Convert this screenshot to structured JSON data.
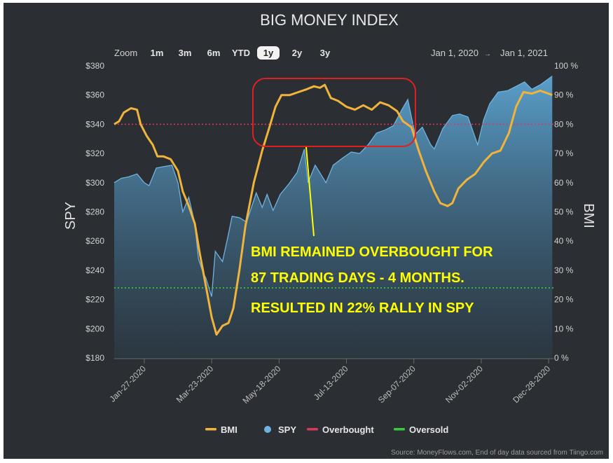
{
  "chart_data": {
    "type": "line",
    "title": "BIG MONEY INDEX",
    "zoom": {
      "label": "Zoom",
      "buttons": [
        "1m",
        "3m",
        "6m",
        "YTD",
        "1y",
        "2y",
        "3y"
      ],
      "selected": "1y"
    },
    "range": {
      "from": "Jan 1, 2020",
      "arrow": "→",
      "to": "Jan 1, 2021"
    },
    "ylabel_left": "SPY",
    "ylabel_right": "BMI",
    "y_left": {
      "min": 180,
      "max": 380,
      "ticks": [
        "$380",
        "$360",
        "$340",
        "$320",
        "$300",
        "$280",
        "$260",
        "$240",
        "$220",
        "$200",
        "$180"
      ]
    },
    "y_right": {
      "min": 0,
      "max": 100,
      "ticks": [
        "100 %",
        "90 %",
        "80 %",
        "70 %",
        "60 %",
        "50 %",
        "40 %",
        "30 %",
        "20 %",
        "10 %",
        "0 %"
      ]
    },
    "x_ticks": [
      "Jan-27-2020",
      "Mar-23-2020",
      "May-18-2020",
      "Jul-13-2020",
      "Sep-07-2020",
      "Nov-02-2020",
      "Dec-28-2020"
    ],
    "x_tick_dates": [
      "2020-01-27",
      "2020-03-23",
      "2020-05-18",
      "2020-07-13",
      "2020-09-07",
      "2020-11-02",
      "2020-12-28"
    ],
    "x_range": [
      "2020-01-02",
      "2021-01-01"
    ],
    "series": [
      {
        "name": "BMI",
        "axis": "right",
        "color": "#f0b43c",
        "points": [
          [
            "2020-01-02",
            80
          ],
          [
            "2020-01-06",
            81
          ],
          [
            "2020-01-10",
            84
          ],
          [
            "2020-01-16",
            85.5
          ],
          [
            "2020-01-21",
            85
          ],
          [
            "2020-01-24",
            80
          ],
          [
            "2020-01-29",
            76
          ],
          [
            "2020-02-03",
            73
          ],
          [
            "2020-02-07",
            69
          ],
          [
            "2020-02-12",
            69
          ],
          [
            "2020-02-18",
            68
          ],
          [
            "2020-02-24",
            64
          ],
          [
            "2020-02-28",
            57
          ],
          [
            "2020-03-04",
            52
          ],
          [
            "2020-03-09",
            46
          ],
          [
            "2020-03-13",
            36
          ],
          [
            "2020-03-18",
            25
          ],
          [
            "2020-03-23",
            14
          ],
          [
            "2020-03-27",
            8
          ],
          [
            "2020-04-01",
            11
          ],
          [
            "2020-04-06",
            12
          ],
          [
            "2020-04-10",
            17
          ],
          [
            "2020-04-15",
            30
          ],
          [
            "2020-04-20",
            45
          ],
          [
            "2020-04-27",
            60
          ],
          [
            "2020-05-04",
            71
          ],
          [
            "2020-05-10",
            79
          ],
          [
            "2020-05-15",
            86
          ],
          [
            "2020-05-20",
            90
          ],
          [
            "2020-05-27",
            90
          ],
          [
            "2020-06-03",
            91
          ],
          [
            "2020-06-10",
            92
          ],
          [
            "2020-06-16",
            93
          ],
          [
            "2020-06-21",
            92.5
          ],
          [
            "2020-06-25",
            93.5
          ],
          [
            "2020-06-30",
            89
          ],
          [
            "2020-07-06",
            88
          ],
          [
            "2020-07-13",
            86
          ],
          [
            "2020-07-20",
            85
          ],
          [
            "2020-07-27",
            86.5
          ],
          [
            "2020-08-03",
            85
          ],
          [
            "2020-08-10",
            87.5
          ],
          [
            "2020-08-17",
            86.5
          ],
          [
            "2020-08-24",
            84.5
          ],
          [
            "2020-08-29",
            81
          ],
          [
            "2020-09-05",
            79
          ],
          [
            "2020-09-11",
            71
          ],
          [
            "2020-09-17",
            64
          ],
          [
            "2020-09-24",
            57
          ],
          [
            "2020-09-29",
            53
          ],
          [
            "2020-10-05",
            52
          ],
          [
            "2020-10-09",
            53
          ],
          [
            "2020-10-14",
            58
          ],
          [
            "2020-10-21",
            61
          ],
          [
            "2020-10-28",
            63
          ],
          [
            "2020-11-04",
            67
          ],
          [
            "2020-11-11",
            70
          ],
          [
            "2020-11-18",
            71
          ],
          [
            "2020-11-25",
            77
          ],
          [
            "2020-12-01",
            86
          ],
          [
            "2020-12-07",
            91
          ],
          [
            "2020-12-14",
            90.5
          ],
          [
            "2020-12-21",
            91.5
          ],
          [
            "2020-12-31",
            90
          ]
        ]
      },
      {
        "name": "SPY",
        "axis": "left",
        "color": "#6fb3e0",
        "points": [
          [
            "2020-01-02",
            300
          ],
          [
            "2020-01-08",
            303
          ],
          [
            "2020-01-14",
            304
          ],
          [
            "2020-01-21",
            306
          ],
          [
            "2020-01-27",
            300
          ],
          [
            "2020-01-31",
            298
          ],
          [
            "2020-02-06",
            310
          ],
          [
            "2020-02-12",
            311
          ],
          [
            "2020-02-19",
            312
          ],
          [
            "2020-02-24",
            300
          ],
          [
            "2020-02-28",
            280
          ],
          [
            "2020-03-04",
            290
          ],
          [
            "2020-03-09",
            272
          ],
          [
            "2020-03-12",
            248
          ],
          [
            "2020-03-16",
            238
          ],
          [
            "2020-03-18",
            235
          ],
          [
            "2020-03-23",
            222
          ],
          [
            "2020-03-26",
            253
          ],
          [
            "2020-04-01",
            246
          ],
          [
            "2020-04-06",
            265
          ],
          [
            "2020-04-09",
            277
          ],
          [
            "2020-04-15",
            276
          ],
          [
            "2020-04-21",
            273
          ],
          [
            "2020-04-29",
            293
          ],
          [
            "2020-05-04",
            283
          ],
          [
            "2020-05-08",
            292
          ],
          [
            "2020-05-13",
            281
          ],
          [
            "2020-05-19",
            292
          ],
          [
            "2020-05-26",
            299
          ],
          [
            "2020-06-02",
            307
          ],
          [
            "2020-06-08",
            323
          ],
          [
            "2020-06-11",
            300
          ],
          [
            "2020-06-17",
            312
          ],
          [
            "2020-06-26",
            300
          ],
          [
            "2020-07-02",
            312
          ],
          [
            "2020-07-10",
            317
          ],
          [
            "2020-07-17",
            321
          ],
          [
            "2020-07-24",
            320
          ],
          [
            "2020-07-31",
            326
          ],
          [
            "2020-08-07",
            334
          ],
          [
            "2020-08-14",
            336
          ],
          [
            "2020-08-21",
            339
          ],
          [
            "2020-08-28",
            350
          ],
          [
            "2020-09-02",
            357
          ],
          [
            "2020-09-08",
            333
          ],
          [
            "2020-09-14",
            338
          ],
          [
            "2020-09-21",
            326
          ],
          [
            "2020-09-24",
            323
          ],
          [
            "2020-10-01",
            337
          ],
          [
            "2020-10-09",
            346
          ],
          [
            "2020-10-15",
            347
          ],
          [
            "2020-10-22",
            345
          ],
          [
            "2020-10-30",
            326
          ],
          [
            "2020-11-04",
            343
          ],
          [
            "2020-11-09",
            354
          ],
          [
            "2020-11-16",
            362
          ],
          [
            "2020-11-24",
            363
          ],
          [
            "2020-12-01",
            366
          ],
          [
            "2020-12-08",
            369
          ],
          [
            "2020-12-14",
            364
          ],
          [
            "2020-12-21",
            367
          ],
          [
            "2020-12-31",
            373
          ]
        ]
      },
      {
        "name": "Overbought",
        "axis": "right",
        "color": "#d8385c",
        "value": 80,
        "style": "dotted"
      },
      {
        "name": "Oversold",
        "axis": "right",
        "color": "#39cc39",
        "value": 24,
        "style": "dotted"
      }
    ],
    "legend": {
      "placement": "bottom",
      "items": [
        "BMI",
        "SPY",
        "Overbought",
        "Oversold"
      ]
    },
    "annotation": {
      "lines": [
        "BMI REMAINED OVERBOUGHT FOR",
        "87 TRADING DAYS -  4 MONTHS.",
        "RESULTED IN 22% RALLY IN SPY"
      ],
      "color": "#ffff00",
      "box_color": "#e02020"
    },
    "source": "Source: MoneyFlows.com, End of day data sourced from Tiingo.com"
  }
}
